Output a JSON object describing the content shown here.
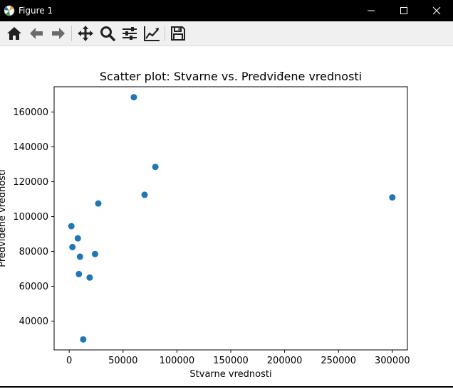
{
  "window": {
    "title": "Figure 1",
    "controls": [
      "minimize-icon",
      "maximize-icon",
      "close-icon"
    ]
  },
  "toolbar": {
    "buttons": [
      "home-icon",
      "back-icon",
      "forward-icon",
      "pan-icon",
      "zoom-icon",
      "configure-subplots-icon",
      "edit-axis-icon",
      "save-icon"
    ]
  },
  "chart_data": {
    "type": "scatter",
    "title": "Scatter plot: Stvarne vs. Predviđene vrednosti",
    "xlabel": "Stvarne vrednosti",
    "ylabel": "Predviđene vrednosti",
    "xlim": [
      -14000,
      314000
    ],
    "ylim": [
      23500,
      174500
    ],
    "xticks": [
      0,
      50000,
      100000,
      150000,
      200000,
      250000,
      300000
    ],
    "xtick_labels": [
      "0",
      "50000",
      "100000",
      "150000",
      "200000",
      "250000",
      "300000"
    ],
    "yticks": [
      40000,
      60000,
      80000,
      100000,
      120000,
      140000,
      160000
    ],
    "ytick_labels": [
      "40000",
      "60000",
      "80000",
      "100000",
      "120000",
      "140000",
      "160000"
    ],
    "grid": false,
    "color": "#1f77b4",
    "points": [
      {
        "x": 60000,
        "y": 168500
      },
      {
        "x": 80000,
        "y": 128500
      },
      {
        "x": 70000,
        "y": 112500
      },
      {
        "x": 300000,
        "y": 111000
      },
      {
        "x": 27000,
        "y": 107500
      },
      {
        "x": 2000,
        "y": 94500
      },
      {
        "x": 8000,
        "y": 87500
      },
      {
        "x": 3000,
        "y": 82500
      },
      {
        "x": 24000,
        "y": 78500
      },
      {
        "x": 10000,
        "y": 77000
      },
      {
        "x": 9000,
        "y": 67000
      },
      {
        "x": 19000,
        "y": 65000
      },
      {
        "x": 13000,
        "y": 29500
      }
    ]
  }
}
